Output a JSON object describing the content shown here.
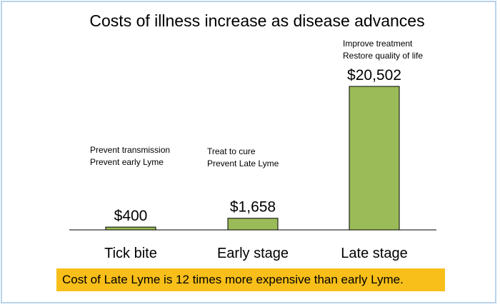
{
  "chart_data": {
    "type": "bar",
    "title": "Costs of illness increase as disease advances",
    "categories": [
      "Tick bite",
      "Early stage",
      "Late stage"
    ],
    "values": [
      400,
      1658,
      20502
    ],
    "value_labels": [
      "$400",
      "$1,658",
      "$20,502"
    ],
    "annotations": [
      [
        "Prevent transmission",
        "Prevent early Lyme"
      ],
      [
        "Treat to cure",
        "Prevent Late Lyme"
      ],
      [
        "Improve treatment",
        "Restore quality of life"
      ]
    ],
    "ylim": [
      0,
      20502
    ],
    "bar_color": "#9bbb59",
    "bar_stroke": "#000000",
    "grid": false
  },
  "footer": {
    "text": "Cost of Late Lyme is 12 times more expensive than early Lyme.",
    "background": "#f8bf1a"
  }
}
